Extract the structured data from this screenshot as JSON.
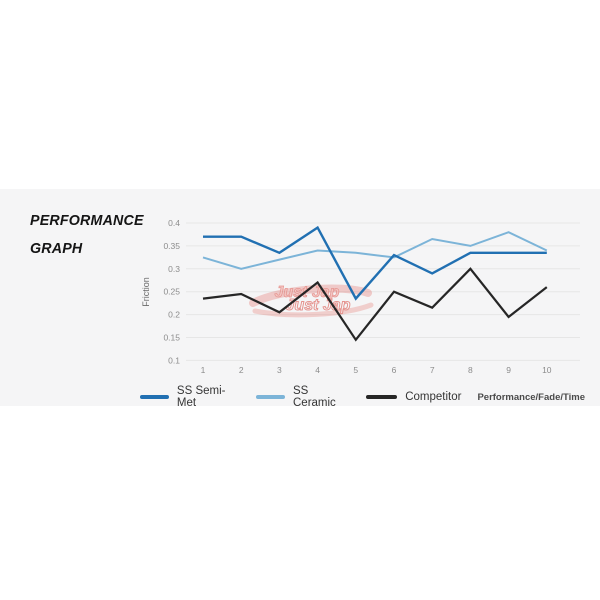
{
  "header": {
    "title_line1": "PERFORMANCE",
    "title_line2": "GRAPH"
  },
  "watermark": {
    "text_top": "Just Jap",
    "text_bottom": "Just Jap",
    "color": "#dd4f46"
  },
  "footer": {
    "right_label": "Performance/Fade/Time"
  },
  "colors": {
    "band_bg": "#f5f5f6",
    "grid": "#e6e6e6",
    "axis_text": "#8c8c8c",
    "semi_met_blue": "#2170b2",
    "ceramic_blue": "#7cb4d8",
    "competitor_black": "#262626"
  },
  "chart_data": {
    "type": "line",
    "title": "Performance Graph",
    "xlabel": "",
    "ylabel": "Friction",
    "x": [
      1,
      2,
      3,
      4,
      5,
      6,
      7,
      8,
      9,
      10
    ],
    "ylim": [
      0.1,
      0.4
    ],
    "ytick_step": 0.05,
    "ytick_labels": [
      "0.4",
      "0.35",
      "0.3",
      "0.25",
      "0.2",
      "0.15",
      "0.1"
    ],
    "grid": true,
    "legend_position": "bottom",
    "series": [
      {
        "name": "SS Semi-Met",
        "color": "#2170b2",
        "values": [
          0.37,
          0.37,
          0.335,
          0.39,
          0.235,
          0.33,
          0.29,
          0.335,
          0.335,
          0.335
        ]
      },
      {
        "name": "SS Ceramic",
        "color": "#7cb4d8",
        "values": [
          0.325,
          0.3,
          0.32,
          0.34,
          0.335,
          0.325,
          0.365,
          0.35,
          0.38,
          0.34
        ]
      },
      {
        "name": "Competitor",
        "color": "#262626",
        "values": [
          0.235,
          0.245,
          0.205,
          0.27,
          0.145,
          0.25,
          0.215,
          0.3,
          0.195,
          0.26
        ]
      }
    ],
    "annotation_right": "Performance/Fade/Time"
  }
}
